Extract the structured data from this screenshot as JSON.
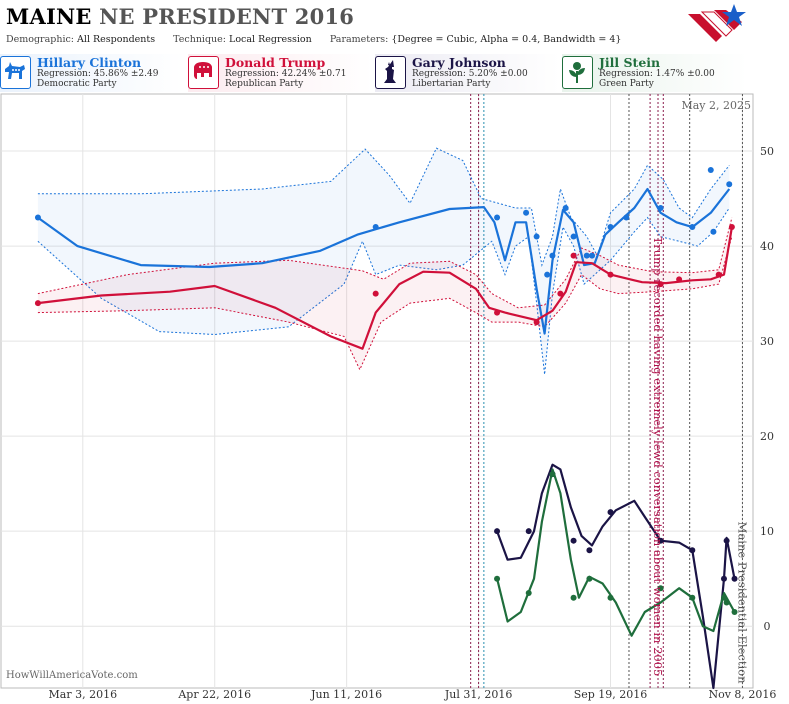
{
  "header": {
    "state": "MAINE",
    "title_rest": "NE PRESIDENT 2016",
    "demographic_label": "Demographic:",
    "demographic": "All Respondents",
    "technique_label": "Technique:",
    "technique": "Local Regression",
    "parameters_label": "Parameters:",
    "parameters": "{Degree = Cubic, Alpha = 0.4, Bandwidth = 4}"
  },
  "candidates": [
    {
      "name": "Hillary Clinton",
      "regression": "Regression: 45.86% ±2.49",
      "party": "Democratic Party",
      "color": "#1a73d9",
      "icon": "donkey-icon"
    },
    {
      "name": "Donald Trump",
      "regression": "Regression: 42.24% ±0.71",
      "party": "Republican Party",
      "color": "#d0103a",
      "icon": "elephant-icon"
    },
    {
      "name": "Gary Johnson",
      "regression": "Regression: 5.20% ±0.00",
      "party": "Libertarian Party",
      "color": "#1b1446",
      "icon": "statue-of-liberty-icon"
    },
    {
      "name": "Jill Stein",
      "regression": "Regression: 1.47% ±0.00",
      "party": "Green Party",
      "color": "#1f6e3c",
      "icon": "leaf-flower-icon"
    }
  ],
  "chart_data": {
    "type": "line",
    "date_label": "May 2, 2025",
    "watermark": "HowWillAmericaVote.com",
    "x_ticks": [
      "2016-03-03",
      "2016-04-22",
      "2016-06-11",
      "2016-07-31",
      "2016-09-19",
      "2016-11-08"
    ],
    "x_tick_labels": [
      "Mar 3, 2016",
      "Apr 22, 2016",
      "Jun 11, 2016",
      "Jul 31, 2016",
      "Sep 19, 2016",
      "Nov 8, 2016"
    ],
    "xlim": [
      "2016-02-01",
      "2016-11-12"
    ],
    "y_ticks": [
      0,
      10,
      20,
      30,
      40,
      50
    ],
    "ylim": [
      -6.5,
      56
    ],
    "y_axis_side": "right",
    "series": [
      {
        "name": "Hillary Clinton",
        "color": "#1a73d9",
        "points": [
          [
            "2016-02-15",
            43
          ],
          [
            "2016-06-22",
            42
          ],
          [
            "2016-08-07",
            43
          ],
          [
            "2016-08-18",
            43.5
          ],
          [
            "2016-08-22",
            41
          ],
          [
            "2016-08-26",
            37
          ],
          [
            "2016-08-28",
            39
          ],
          [
            "2016-09-02",
            44
          ],
          [
            "2016-09-05",
            41
          ],
          [
            "2016-09-10",
            39
          ],
          [
            "2016-09-12",
            39
          ],
          [
            "2016-09-19",
            42
          ],
          [
            "2016-09-25",
            43
          ],
          [
            "2016-10-08",
            44
          ],
          [
            "2016-10-20",
            42
          ],
          [
            "2016-10-27",
            48
          ],
          [
            "2016-10-28",
            41.5
          ],
          [
            "2016-11-03",
            46.5
          ]
        ],
        "fit": [
          [
            "2016-02-15",
            43
          ],
          [
            "2016-03-01",
            40
          ],
          [
            "2016-03-25",
            38
          ],
          [
            "2016-04-20",
            37.8
          ],
          [
            "2016-05-10",
            38.2
          ],
          [
            "2016-06-01",
            39.5
          ],
          [
            "2016-06-15",
            41.2
          ],
          [
            "2016-07-01",
            42.5
          ],
          [
            "2016-07-20",
            43.9
          ],
          [
            "2016-08-02",
            44.1
          ],
          [
            "2016-08-06",
            42.5
          ],
          [
            "2016-08-10",
            38.5
          ],
          [
            "2016-08-14",
            42.5
          ],
          [
            "2016-08-18",
            42.5
          ],
          [
            "2016-08-22",
            35.5
          ],
          [
            "2016-08-25",
            30.8
          ],
          [
            "2016-08-28",
            38.5
          ],
          [
            "2016-09-01",
            43.8
          ],
          [
            "2016-09-05",
            42.5
          ],
          [
            "2016-09-09",
            38
          ],
          [
            "2016-09-13",
            38.2
          ],
          [
            "2016-09-17",
            41.2
          ],
          [
            "2016-09-22",
            42.5
          ],
          [
            "2016-09-28",
            44
          ],
          [
            "2016-10-03",
            46
          ],
          [
            "2016-10-08",
            43.5
          ],
          [
            "2016-10-14",
            42.5
          ],
          [
            "2016-10-20",
            42
          ],
          [
            "2016-10-27",
            43.5
          ],
          [
            "2016-11-03",
            46
          ]
        ],
        "upper": [
          [
            "2016-02-15",
            45.5
          ],
          [
            "2016-03-25",
            45.5
          ],
          [
            "2016-05-10",
            46
          ],
          [
            "2016-06-05",
            46.8
          ],
          [
            "2016-06-18",
            50.2
          ],
          [
            "2016-06-27",
            47.5
          ],
          [
            "2016-07-05",
            44.5
          ],
          [
            "2016-07-15",
            50.3
          ],
          [
            "2016-07-25",
            49
          ],
          [
            "2016-08-01",
            45
          ],
          [
            "2016-08-14",
            44
          ],
          [
            "2016-08-20",
            44
          ],
          [
            "2016-08-24",
            38
          ],
          [
            "2016-08-28",
            41
          ],
          [
            "2016-08-31",
            46
          ],
          [
            "2016-09-04",
            43
          ],
          [
            "2016-09-10",
            41
          ],
          [
            "2016-09-14",
            39
          ],
          [
            "2016-09-19",
            43.5
          ],
          [
            "2016-09-28",
            46
          ],
          [
            "2016-10-03",
            48.5
          ],
          [
            "2016-10-09",
            47
          ],
          [
            "2016-10-15",
            44
          ],
          [
            "2016-10-20",
            43
          ],
          [
            "2016-10-27",
            46
          ],
          [
            "2016-11-03",
            48.5
          ]
        ],
        "lower": [
          [
            "2016-02-15",
            40.5
          ],
          [
            "2016-03-10",
            34.5
          ],
          [
            "2016-04-01",
            31
          ],
          [
            "2016-04-22",
            30.7
          ],
          [
            "2016-05-20",
            31.5
          ],
          [
            "2016-06-10",
            36
          ],
          [
            "2016-06-17",
            40.5
          ],
          [
            "2016-06-22",
            37
          ],
          [
            "2016-07-01",
            38
          ],
          [
            "2016-07-15",
            37.5
          ],
          [
            "2016-07-25",
            38
          ],
          [
            "2016-08-05",
            40.5
          ],
          [
            "2016-08-10",
            37
          ],
          [
            "2016-08-14",
            40
          ],
          [
            "2016-08-19",
            41
          ],
          [
            "2016-08-22",
            34
          ],
          [
            "2016-08-25",
            26.5
          ],
          [
            "2016-08-28",
            35
          ],
          [
            "2016-09-01",
            42
          ],
          [
            "2016-09-05",
            40
          ],
          [
            "2016-09-09",
            36
          ],
          [
            "2016-09-13",
            37
          ],
          [
            "2016-09-19",
            38.5
          ],
          [
            "2016-09-28",
            41.5
          ],
          [
            "2016-10-03",
            43
          ],
          [
            "2016-10-08",
            41
          ],
          [
            "2016-10-15",
            40.5
          ],
          [
            "2016-10-22",
            40
          ],
          [
            "2016-10-28",
            41.5
          ],
          [
            "2016-11-03",
            44
          ]
        ]
      },
      {
        "name": "Donald Trump",
        "color": "#d0103a",
        "points": [
          [
            "2016-02-15",
            34
          ],
          [
            "2016-06-22",
            35
          ],
          [
            "2016-08-07",
            33
          ],
          [
            "2016-08-22",
            32
          ],
          [
            "2016-08-31",
            35
          ],
          [
            "2016-09-05",
            39
          ],
          [
            "2016-09-19",
            37
          ],
          [
            "2016-10-08",
            36
          ],
          [
            "2016-10-15",
            36.5
          ],
          [
            "2016-10-30",
            37
          ],
          [
            "2016-11-04",
            42
          ]
        ],
        "fit": [
          [
            "2016-02-15",
            34
          ],
          [
            "2016-03-10",
            34.8
          ],
          [
            "2016-04-05",
            35.2
          ],
          [
            "2016-04-22",
            35.8
          ],
          [
            "2016-05-15",
            33.5
          ],
          [
            "2016-06-05",
            30.5
          ],
          [
            "2016-06-17",
            29.2
          ],
          [
            "2016-06-22",
            33
          ],
          [
            "2016-07-01",
            36
          ],
          [
            "2016-07-10",
            37.3
          ],
          [
            "2016-07-20",
            37.2
          ],
          [
            "2016-07-30",
            35.5
          ],
          [
            "2016-08-04",
            33.5
          ],
          [
            "2016-08-10",
            33
          ],
          [
            "2016-08-22",
            32.2
          ],
          [
            "2016-08-28",
            33.2
          ],
          [
            "2016-09-02",
            35.2
          ],
          [
            "2016-09-06",
            38.3
          ],
          [
            "2016-09-12",
            38.2
          ],
          [
            "2016-09-19",
            37
          ],
          [
            "2016-10-01",
            36.2
          ],
          [
            "2016-10-10",
            36.1
          ],
          [
            "2016-10-20",
            36.4
          ],
          [
            "2016-10-27",
            36.5
          ],
          [
            "2016-11-01",
            37
          ],
          [
            "2016-11-04",
            42
          ]
        ],
        "upper": [
          [
            "2016-02-15",
            35
          ],
          [
            "2016-03-20",
            37
          ],
          [
            "2016-04-22",
            38.2
          ],
          [
            "2016-05-20",
            38.5
          ],
          [
            "2016-06-17",
            37.4
          ],
          [
            "2016-06-25",
            36.5
          ],
          [
            "2016-07-05",
            38.2
          ],
          [
            "2016-07-20",
            38.4
          ],
          [
            "2016-07-30",
            37
          ],
          [
            "2016-08-05",
            35
          ],
          [
            "2016-08-15",
            33.5
          ],
          [
            "2016-08-25",
            33.8
          ],
          [
            "2016-09-02",
            36.5
          ],
          [
            "2016-09-08",
            39.8
          ],
          [
            "2016-09-15",
            39
          ],
          [
            "2016-09-22",
            38
          ],
          [
            "2016-10-05",
            37.3
          ],
          [
            "2016-10-20",
            37.2
          ],
          [
            "2016-10-30",
            37.5
          ],
          [
            "2016-11-04",
            43
          ]
        ],
        "lower": [
          [
            "2016-02-15",
            33
          ],
          [
            "2016-03-20",
            33.2
          ],
          [
            "2016-04-22",
            33.5
          ],
          [
            "2016-05-20",
            32
          ],
          [
            "2016-06-10",
            30.5
          ],
          [
            "2016-06-16",
            27
          ],
          [
            "2016-06-24",
            32
          ],
          [
            "2016-07-05",
            34
          ],
          [
            "2016-07-20",
            34.5
          ],
          [
            "2016-07-30",
            33
          ],
          [
            "2016-08-05",
            32
          ],
          [
            "2016-08-15",
            32
          ],
          [
            "2016-08-25",
            31.5
          ],
          [
            "2016-09-02",
            34
          ],
          [
            "2016-09-08",
            37
          ],
          [
            "2016-09-15",
            35.5
          ],
          [
            "2016-09-22",
            35
          ],
          [
            "2016-10-05",
            35.2
          ],
          [
            "2016-10-20",
            35.5
          ],
          [
            "2016-10-30",
            36
          ],
          [
            "2016-11-04",
            41
          ]
        ]
      },
      {
        "name": "Gary Johnson",
        "color": "#1b1446",
        "points": [
          [
            "2016-08-07",
            10
          ],
          [
            "2016-08-19",
            10
          ],
          [
            "2016-08-28",
            16
          ],
          [
            "2016-09-05",
            9
          ],
          [
            "2016-09-11",
            8
          ],
          [
            "2016-09-19",
            12
          ],
          [
            "2016-10-08",
            9
          ],
          [
            "2016-10-20",
            8
          ],
          [
            "2016-11-01",
            5
          ],
          [
            "2016-11-02",
            9
          ],
          [
            "2016-11-05",
            5
          ]
        ],
        "fit": [
          [
            "2016-08-07",
            10
          ],
          [
            "2016-08-11",
            7
          ],
          [
            "2016-08-16",
            7.2
          ],
          [
            "2016-08-21",
            10
          ],
          [
            "2016-08-24",
            14
          ],
          [
            "2016-08-28",
            17
          ],
          [
            "2016-08-31",
            16.5
          ],
          [
            "2016-09-04",
            12.5
          ],
          [
            "2016-09-08",
            9.5
          ],
          [
            "2016-09-12",
            8.5
          ],
          [
            "2016-09-16",
            10.5
          ],
          [
            "2016-09-21",
            12.2
          ],
          [
            "2016-09-28",
            13.2
          ],
          [
            "2016-10-02",
            11.5
          ],
          [
            "2016-10-08",
            9
          ],
          [
            "2016-10-15",
            8.8
          ],
          [
            "2016-10-20",
            8
          ],
          [
            "2016-10-24",
            1
          ],
          [
            "2016-10-28",
            -6.5
          ],
          [
            "2016-11-01",
            5
          ],
          [
            "2016-11-02",
            9.3
          ],
          [
            "2016-11-05",
            5
          ]
        ]
      },
      {
        "name": "Jill Stein",
        "color": "#1f6e3c",
        "points": [
          [
            "2016-08-07",
            5
          ],
          [
            "2016-08-19",
            3.5
          ],
          [
            "2016-08-28",
            16
          ],
          [
            "2016-09-05",
            3
          ],
          [
            "2016-09-11",
            5
          ],
          [
            "2016-09-19",
            3
          ],
          [
            "2016-10-08",
            4
          ],
          [
            "2016-10-20",
            3
          ],
          [
            "2016-11-01",
            3
          ],
          [
            "2016-11-02",
            2.5
          ],
          [
            "2016-11-05",
            1.5
          ]
        ],
        "fit": [
          [
            "2016-08-07",
            5
          ],
          [
            "2016-08-11",
            0.5
          ],
          [
            "2016-08-16",
            1.5
          ],
          [
            "2016-08-21",
            5
          ],
          [
            "2016-08-24",
            11
          ],
          [
            "2016-08-28",
            16.5
          ],
          [
            "2016-08-31",
            14
          ],
          [
            "2016-09-04",
            7
          ],
          [
            "2016-09-07",
            3
          ],
          [
            "2016-09-11",
            5.2
          ],
          [
            "2016-09-16",
            4.5
          ],
          [
            "2016-09-21",
            2.5
          ],
          [
            "2016-09-27",
            -1
          ],
          [
            "2016-10-02",
            1.5
          ],
          [
            "2016-10-08",
            2.5
          ],
          [
            "2016-10-15",
            4
          ],
          [
            "2016-10-20",
            3
          ],
          [
            "2016-10-24",
            0
          ],
          [
            "2016-10-28",
            -0.5
          ],
          [
            "2016-11-01",
            3.5
          ],
          [
            "2016-11-05",
            1.5
          ]
        ]
      }
    ],
    "event_lines": [
      {
        "date": "2016-07-28",
        "color": "#8b1d4d"
      },
      {
        "date": "2016-07-31",
        "color": "#8b1d4d"
      },
      {
        "date": "2016-08-02",
        "color": "#2a8fb0"
      },
      {
        "date": "2016-09-26",
        "color": "#555555"
      },
      {
        "date": "2016-10-04",
        "color": "#8b1d4d"
      },
      {
        "date": "2016-10-07",
        "color": "#8b1d4d"
      },
      {
        "date": "2016-10-09",
        "color": "#8b1d4d"
      },
      {
        "date": "2016-10-19",
        "color": "#555555"
      },
      {
        "date": "2016-11-08",
        "color": "#555555"
      }
    ],
    "annotations": [
      {
        "text": "Trump recorded having extremely lewd conversation about women in 2005",
        "date": "2016-10-07",
        "y": 41,
        "color": "#b0104a"
      },
      {
        "text": "Maine Presidential Election",
        "date": "2016-11-08",
        "y": 11,
        "color": "#555555"
      }
    ]
  }
}
